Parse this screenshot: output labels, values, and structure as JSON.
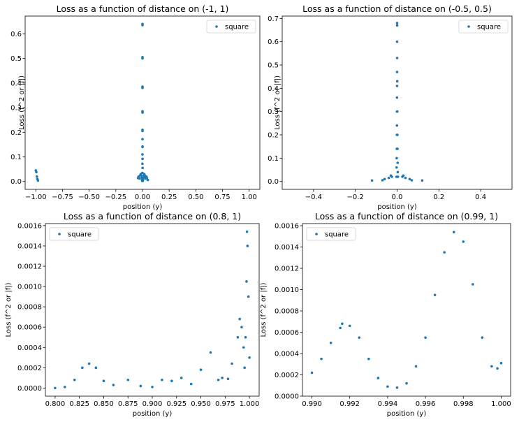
{
  "chart_data": [
    {
      "type": "scatter",
      "title": "Loss as a function of distance on (-1, 1)",
      "xlabel": "position (y)",
      "ylabel": "Loss (f^2 or |f|)",
      "xlim": [
        -1.1,
        1.1
      ],
      "ylim": [
        -0.032,
        0.672
      ],
      "xticks": [
        -1.0,
        -0.75,
        -0.5,
        -0.25,
        0.0,
        0.25,
        0.5,
        0.75,
        1.0
      ],
      "xtick_labels": [
        "−1.00",
        "−0.75",
        "−0.50",
        "−0.25",
        "0.00",
        "0.25",
        "0.50",
        "0.75",
        "1.00"
      ],
      "yticks": [
        0.0,
        0.1,
        0.2,
        0.3,
        0.4,
        0.5,
        0.6
      ],
      "ytick_labels": [
        "0.0",
        "0.1",
        "0.2",
        "0.3",
        "0.4",
        "0.5",
        "0.6"
      ],
      "legend": "top-right",
      "series": [
        {
          "name": "square",
          "color": "#1f77b4",
          "points": [
            [
              -1.0,
              0.045
            ],
            [
              -0.995,
              0.038
            ],
            [
              -0.99,
              0.02
            ],
            [
              -0.985,
              0.01
            ],
            [
              -0.98,
              0.004
            ],
            [
              -0.02,
              0.026
            ],
            [
              -0.016,
              0.03
            ],
            [
              -0.012,
              0.024
            ],
            [
              -0.008,
              0.016
            ],
            [
              -0.006,
              0.01
            ],
            [
              -0.004,
              0.005
            ],
            [
              -0.002,
              0.002
            ],
            [
              0.002,
              0.002
            ],
            [
              0.004,
              0.005
            ],
            [
              0.006,
              0.01
            ],
            [
              0.008,
              0.016
            ],
            [
              0.012,
              0.024
            ],
            [
              0.016,
              0.03
            ],
            [
              0.02,
              0.026
            ],
            [
              0.024,
              0.02
            ],
            [
              0.03,
              0.012
            ],
            [
              0.036,
              0.02
            ],
            [
              0.042,
              0.014
            ],
            [
              0.05,
              0.006
            ],
            [
              -0.03,
              0.012
            ],
            [
              -0.036,
              0.02
            ],
            [
              -0.042,
              0.014
            ],
            [
              -0.001,
              0.035
            ],
            [
              0.001,
              0.055
            ],
            [
              -0.0008,
              0.072
            ],
            [
              0.0008,
              0.092
            ],
            [
              -0.0006,
              0.11
            ],
            [
              0.0006,
              0.14
            ],
            [
              0.0004,
              0.142
            ],
            [
              -0.0002,
              0.172
            ],
            [
              0.0002,
              0.205
            ],
            [
              0.0,
              0.21
            ],
            [
              0.0003,
              0.28
            ],
            [
              0.0,
              0.285
            ],
            [
              0.0002,
              0.38
            ],
            [
              0.0,
              0.385
            ],
            [
              -0.0001,
              0.5
            ],
            [
              0.0001,
              0.505
            ],
            [
              0.0,
              0.635
            ],
            [
              0.0001,
              0.64
            ]
          ]
        }
      ]
    },
    {
      "type": "scatter",
      "title": "Loss as a function of distance on (-0.5, 0.5)",
      "xlabel": "position (y)",
      "ylabel": "Loss (f^2 or |f|)",
      "xlim": [
        -0.55,
        0.55
      ],
      "ylim": [
        -0.034,
        0.71
      ],
      "xticks": [
        -0.4,
        -0.2,
        0.0,
        0.2,
        0.4
      ],
      "xtick_labels": [
        "−0.4",
        "−0.2",
        "0.0",
        "0.2",
        "0.4"
      ],
      "yticks": [
        0.0,
        0.1,
        0.2,
        0.3,
        0.4,
        0.5,
        0.6,
        0.7
      ],
      "ytick_labels": [
        "0.0",
        "0.1",
        "0.2",
        "0.3",
        "0.4",
        "0.5",
        "0.6",
        "0.7"
      ],
      "legend": "top-right",
      "series": [
        {
          "name": "square",
          "color": "#1f77b4",
          "points": [
            [
              -0.003,
              0.02
            ],
            [
              -0.0025,
              0.06
            ],
            [
              -0.002,
              0.1
            ],
            [
              -0.0015,
              0.14
            ],
            [
              -0.001,
              0.2
            ],
            [
              -0.0008,
              0.24
            ],
            [
              -0.0006,
              0.3
            ],
            [
              -0.0004,
              0.36
            ],
            [
              -0.0002,
              0.41
            ],
            [
              0.0,
              0.47
            ],
            [
              0.0002,
              0.53
            ],
            [
              0.0,
              0.6
            ],
            [
              0.0001,
              0.67
            ],
            [
              0.0,
              0.68
            ],
            [
              0.0006,
              0.43
            ],
            [
              0.001,
              0.3
            ],
            [
              0.0015,
              0.2
            ],
            [
              0.002,
              0.14
            ],
            [
              0.0025,
              0.08
            ],
            [
              0.003,
              0.04
            ],
            [
              0.004,
              0.02
            ],
            [
              -0.04,
              0.015
            ],
            [
              -0.03,
              0.025
            ],
            [
              -0.025,
              0.02
            ],
            [
              -0.06,
              0.01
            ],
            [
              -0.07,
              0.005
            ],
            [
              0.04,
              0.015
            ],
            [
              0.03,
              0.025
            ],
            [
              0.025,
              0.02
            ],
            [
              0.06,
              0.01
            ],
            [
              0.07,
              0.005
            ],
            [
              -0.12,
              0.004
            ],
            [
              0.12,
              0.004
            ]
          ]
        }
      ]
    },
    {
      "type": "scatter",
      "title": "Loss as a function of distance on (0.8, 1)",
      "xlabel": "position (y)",
      "ylabel": "Loss (f^2 or |f|)",
      "xlim": [
        0.79,
        1.01
      ],
      "ylim": [
        -8e-05,
        0.00162
      ],
      "xticks": [
        0.8,
        0.825,
        0.85,
        0.875,
        0.9,
        0.925,
        0.95,
        0.975,
        1.0
      ],
      "xtick_labels": [
        "0.800",
        "0.825",
        "0.850",
        "0.875",
        "0.900",
        "0.925",
        "0.950",
        "0.975",
        "1.000"
      ],
      "yticks": [
        0.0,
        0.0002,
        0.0004,
        0.0006,
        0.0008,
        0.001,
        0.0012,
        0.0014,
        0.0016
      ],
      "ytick_labels": [
        "0.0000",
        "0.0002",
        "0.0004",
        "0.0006",
        "0.0008",
        "0.0010",
        "0.0012",
        "0.0014",
        "0.0016"
      ],
      "legend": "top-left",
      "series": [
        {
          "name": "square",
          "color": "#1f77b4",
          "points": [
            [
              0.8,
              0.0
            ],
            [
              0.81,
              1e-05
            ],
            [
              0.82,
              8e-05
            ],
            [
              0.828,
              0.0002
            ],
            [
              0.835,
              0.00024
            ],
            [
              0.842,
              0.0002
            ],
            [
              0.85,
              7e-05
            ],
            [
              0.86,
              3e-05
            ],
            [
              0.875,
              8e-05
            ],
            [
              0.888,
              2e-05
            ],
            [
              0.9,
              1e-05
            ],
            [
              0.91,
              8e-05
            ],
            [
              0.92,
              7e-05
            ],
            [
              0.93,
              0.0001
            ],
            [
              0.94,
              4e-05
            ],
            [
              0.95,
              0.00018
            ],
            [
              0.96,
              0.00035
            ],
            [
              0.968,
              8e-05
            ],
            [
              0.972,
              0.0001
            ],
            [
              0.978,
              9e-05
            ],
            [
              0.982,
              0.00024
            ],
            [
              0.988,
              0.0005
            ],
            [
              0.99,
              0.00068
            ],
            [
              0.992,
              0.0006
            ],
            [
              0.994,
              0.0004
            ],
            [
              0.995,
              0.0002
            ],
            [
              0.996,
              0.0005
            ],
            [
              0.997,
              0.00105
            ],
            [
              0.9975,
              0.00154
            ],
            [
              0.998,
              0.0014
            ],
            [
              0.999,
              0.0009
            ],
            [
              1.0,
              0.0003
            ]
          ]
        }
      ]
    },
    {
      "type": "scatter",
      "title": "Loss as a function of distance on (0.99, 1)",
      "xlabel": "position (y)",
      "ylabel": "Loss (f^2 or |f|)",
      "xlim": [
        0.9895,
        1.0005
      ],
      "ylim": [
        0.0,
        0.00162
      ],
      "xticks": [
        0.99,
        0.992,
        0.994,
        0.996,
        0.998,
        1.0
      ],
      "xtick_labels": [
        "0.990",
        "0.992",
        "0.994",
        "0.996",
        "0.998",
        "1.000"
      ],
      "yticks": [
        0.0,
        0.0002,
        0.0004,
        0.0006,
        0.0008,
        0.001,
        0.0012,
        0.0014,
        0.0016
      ],
      "ytick_labels": [
        "0.0000",
        "0.0002",
        "0.0004",
        "0.0006",
        "0.0008",
        "0.0010",
        "0.0012",
        "0.0014",
        "0.0016"
      ],
      "legend": "top-left",
      "series": [
        {
          "name": "square",
          "color": "#1f77b4",
          "points": [
            [
              0.99,
              0.00022
            ],
            [
              0.9905,
              0.00035
            ],
            [
              0.991,
              0.0005
            ],
            [
              0.9915,
              0.00064
            ],
            [
              0.9916,
              0.00068
            ],
            [
              0.992,
              0.00066
            ],
            [
              0.9925,
              0.00055
            ],
            [
              0.993,
              0.00035
            ],
            [
              0.9935,
              0.00017
            ],
            [
              0.994,
              9e-05
            ],
            [
              0.9945,
              8e-05
            ],
            [
              0.995,
              0.00012
            ],
            [
              0.9955,
              0.00028
            ],
            [
              0.996,
              0.00055
            ],
            [
              0.9965,
              0.00095
            ],
            [
              0.997,
              0.00135
            ],
            [
              0.9975,
              0.00154
            ],
            [
              0.998,
              0.00145
            ],
            [
              0.9985,
              0.00105
            ],
            [
              0.999,
              0.00055
            ],
            [
              0.9995,
              0.00028
            ],
            [
              0.9998,
              0.00026
            ],
            [
              1.0,
              0.00031
            ]
          ]
        }
      ]
    }
  ]
}
